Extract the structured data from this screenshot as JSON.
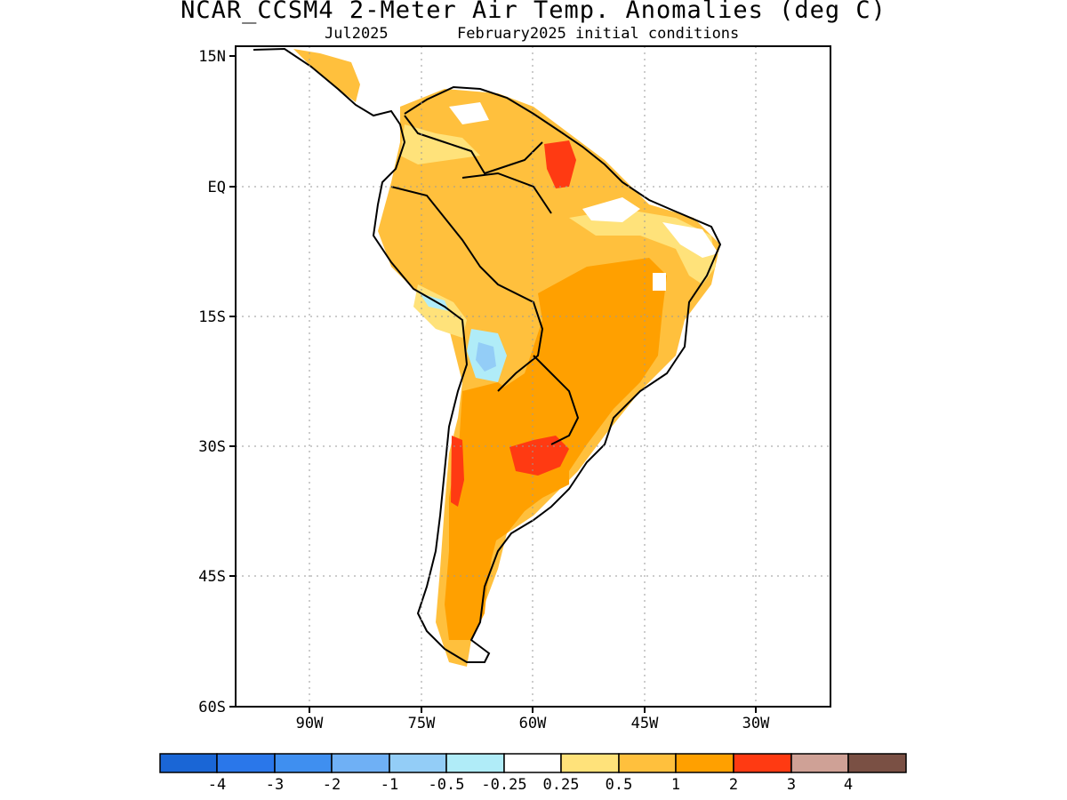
{
  "title": "NCAR_CCSM4 2-Meter Air Temp. Anomalies (deg C)",
  "subtitle_left": "Jul2025",
  "subtitle_right": "February2025 initial conditions",
  "axes": {
    "lat_ticks": [
      "15N",
      "EQ",
      "15S",
      "30S",
      "45S",
      "60S"
    ],
    "lon_ticks": [
      "90W",
      "75W",
      "60W",
      "45W",
      "30W"
    ],
    "lat_range": [
      15,
      -60
    ],
    "lon_range": [
      -100,
      -20
    ],
    "grid": "dotted"
  },
  "colorbar": {
    "labels": [
      "-4",
      "-3",
      "-2",
      "-1",
      "-0.5",
      "-0.25",
      "0.25",
      "0.5",
      "1",
      "2",
      "3",
      "4"
    ],
    "colors": [
      "#1a66d6",
      "#2a77ea",
      "#3f8ff0",
      "#6fb0f5",
      "#93cdf7",
      "#b0ecf8",
      "#ffffff",
      "#ffe27a",
      "#ffc03d",
      "#ffa000",
      "#ff3a12",
      "#cfa196",
      "#7a5044"
    ]
  }
}
